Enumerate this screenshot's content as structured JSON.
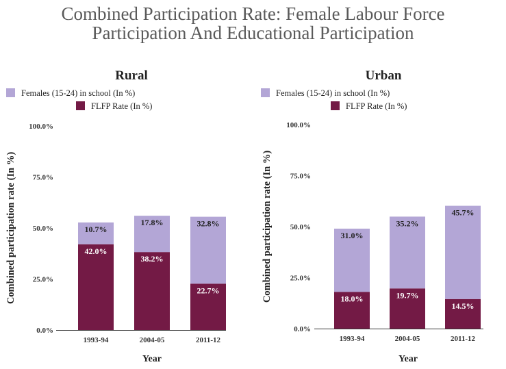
{
  "title_line1": "Combined Participation Rate: Female Labour Force",
  "title_line2": "Participation And Educational Participation",
  "colors": {
    "school": "#b3a6d6",
    "flfp": "#731a45",
    "axis": "#333333",
    "label_dark": "#222222",
    "label_light": "#ffffff"
  },
  "chart_data": [
    {
      "type": "bar",
      "stacked": true,
      "title": "Rural",
      "xlabel": "Year",
      "ylabel": "Combined participation rate (In %)",
      "ylim": [
        0,
        100
      ],
      "yticks": [
        "0.0%",
        "25.0%",
        "50.0%",
        "75.0%",
        "100.0%"
      ],
      "categories": [
        "1993-94",
        "2004-05",
        "2011-12"
      ],
      "series": [
        {
          "name": "FLFP Rate (In %)",
          "values": [
            42.0,
            38.2,
            22.7
          ],
          "labels": [
            "42.0%",
            "38.2%",
            "22.7%"
          ]
        },
        {
          "name": "Females (15-24) in school (In %)",
          "values": [
            10.7,
            17.8,
            32.8
          ],
          "labels": [
            "10.7%",
            "17.8%",
            "32.8%"
          ]
        }
      ],
      "legend": [
        "Females (15-24) in school (In %)",
        "FLFP Rate (In %)"
      ]
    },
    {
      "type": "bar",
      "stacked": true,
      "title": "Urban",
      "xlabel": "Year",
      "ylabel": "Combined participation rate (In %)",
      "ylim": [
        0,
        100
      ],
      "yticks": [
        "0.0%",
        "25.0%",
        "50.0%",
        "75.0%",
        "100.0%"
      ],
      "categories": [
        "1993-94",
        "2004-05",
        "2011-12"
      ],
      "series": [
        {
          "name": "FLFP Rate (In %)",
          "values": [
            18.0,
            19.7,
            14.5
          ],
          "labels": [
            "18.0%",
            "19.7%",
            "14.5%"
          ]
        },
        {
          "name": "Females (15-24) in school (In %)",
          "values": [
            31.0,
            35.2,
            45.7
          ],
          "labels": [
            "31.0%",
            "35.2%",
            "45.7%"
          ]
        }
      ],
      "legend": [
        "Females (15-24) in school (In %)",
        "FLFP Rate (In %)"
      ]
    }
  ]
}
